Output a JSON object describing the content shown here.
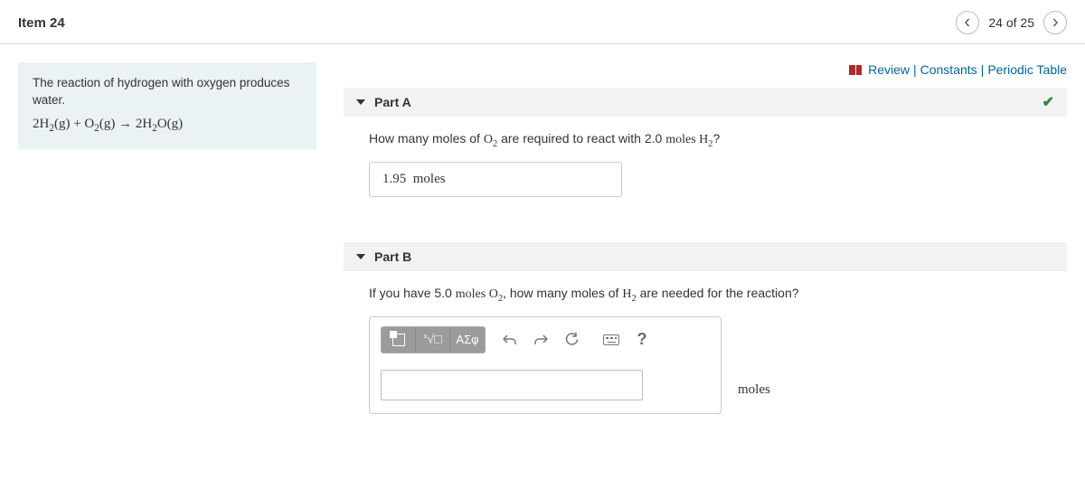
{
  "header": {
    "item_title": "Item 24",
    "pager_text": "24 of 25"
  },
  "top_links": {
    "review": "Review",
    "constants": "Constants",
    "periodic": "Periodic Table"
  },
  "problem": {
    "intro": "The reaction of hydrogen with oxygen produces water.",
    "equation_html": "2H<sub>2</sub>(g) + O<sub>2</sub>(g) → 2H<sub>2</sub>O(g)"
  },
  "part_a": {
    "title": "Part A",
    "question_pre": "How many moles of ",
    "question_mid1": "O",
    "question_sub1": "2",
    "question_mid2": " are required to react with 2.0 ",
    "question_moles": "moles",
    "question_mid3": " H",
    "question_sub2": "2",
    "question_end": "?",
    "answer_value": "1.95",
    "answer_unit": "moles",
    "completed": true
  },
  "part_b": {
    "title": "Part B",
    "question_pre": "If you have 5.0 ",
    "question_moles1": "moles",
    "question_mid1": " O",
    "question_sub1": "2",
    "question_mid2": ", how many moles of ",
    "question_mid3": "H",
    "question_sub2": "2",
    "question_end": " are needed for the reaction?",
    "toolbar": {
      "greek": "ΑΣφ",
      "help": "?"
    },
    "input_value": "",
    "unit": "moles"
  }
}
